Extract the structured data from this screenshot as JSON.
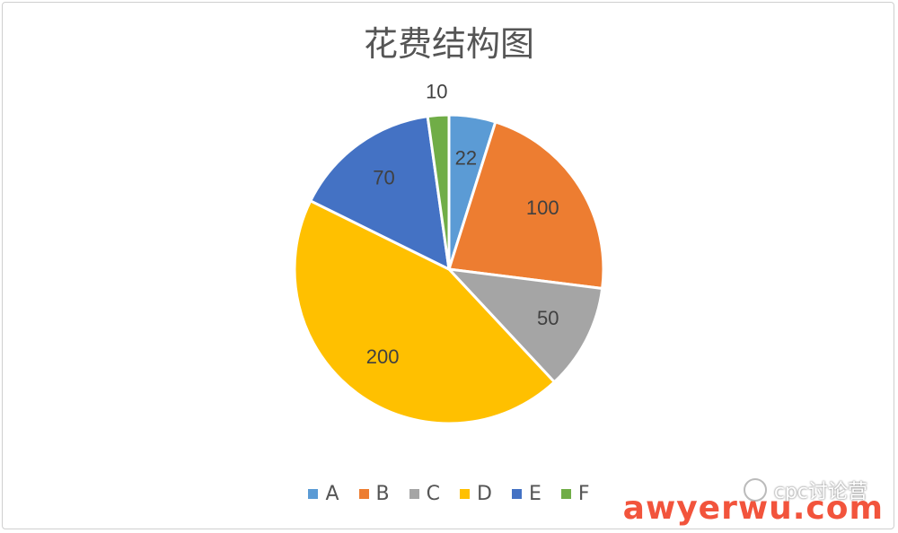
{
  "chart_data": {
    "type": "pie",
    "title": "花费结构图",
    "categories": [
      "A",
      "B",
      "C",
      "D",
      "E",
      "F"
    ],
    "values": [
      22,
      100,
      50,
      200,
      70,
      10
    ],
    "colors": [
      "#5b9bd5",
      "#ed7d31",
      "#a5a5a5",
      "#ffc000",
      "#4472c4",
      "#70ad47"
    ],
    "data_labels": [
      "22",
      "100",
      "50",
      "200",
      "70",
      "10"
    ],
    "legend_position": "bottom",
    "start_angle_deg": 0,
    "direction": "clockwise"
  },
  "watermark": {
    "account": "cpc讨论营",
    "site": "awyerwu.com"
  }
}
